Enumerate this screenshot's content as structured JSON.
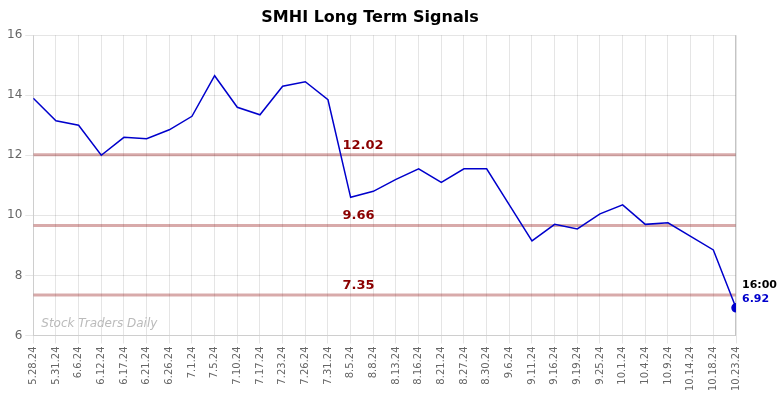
{
  "chart_data": {
    "type": "line",
    "title": "SMHI Long Term Signals",
    "categories": [
      "5.28.24",
      "5.31.24",
      "6.6.24",
      "6.12.24",
      "6.17.24",
      "6.21.24",
      "6.26.24",
      "7.1.24",
      "7.5.24",
      "7.10.24",
      "7.17.24",
      "7.23.24",
      "7.26.24",
      "7.31.24",
      "8.5.24",
      "8.8.24",
      "8.13.24",
      "8.16.24",
      "8.21.24",
      "8.27.24",
      "8.30.24",
      "9.6.24",
      "9.11.24",
      "9.16.24",
      "9.19.24",
      "9.25.24",
      "10.1.24",
      "10.4.24",
      "10.9.24",
      "10.14.24",
      "10.18.24",
      "10.23.24"
    ],
    "values": [
      13.9,
      13.15,
      13.0,
      12.0,
      12.6,
      12.55,
      12.85,
      13.3,
      14.65,
      13.6,
      13.35,
      14.3,
      14.45,
      13.85,
      10.6,
      10.8,
      11.2,
      11.55,
      11.1,
      11.55,
      11.55,
      10.35,
      9.15,
      9.7,
      9.55,
      10.05,
      10.35,
      9.7,
      9.75,
      9.3,
      8.85,
      6.92
    ],
    "color": "#0000cc",
    "ylim": [
      6,
      16
    ],
    "yticks": [
      6,
      8,
      10,
      12,
      14,
      16
    ],
    "grid": true,
    "reference_lines": [
      {
        "y": 12.02,
        "label": "12.02",
        "color": "#8b0000"
      },
      {
        "y": 9.66,
        "label": "9.66",
        "color": "#8b0000"
      },
      {
        "y": 7.35,
        "label": "7.35",
        "color": "#8b0000"
      }
    ],
    "annotations": [
      {
        "text": "16:00",
        "x": "10.23.24",
        "y": 6.92
      },
      {
        "text": "6.92",
        "x": "10.23.24",
        "y": 6.92,
        "color": "#0000cc"
      },
      {
        "text": "Stock Traders Daily"
      }
    ]
  }
}
